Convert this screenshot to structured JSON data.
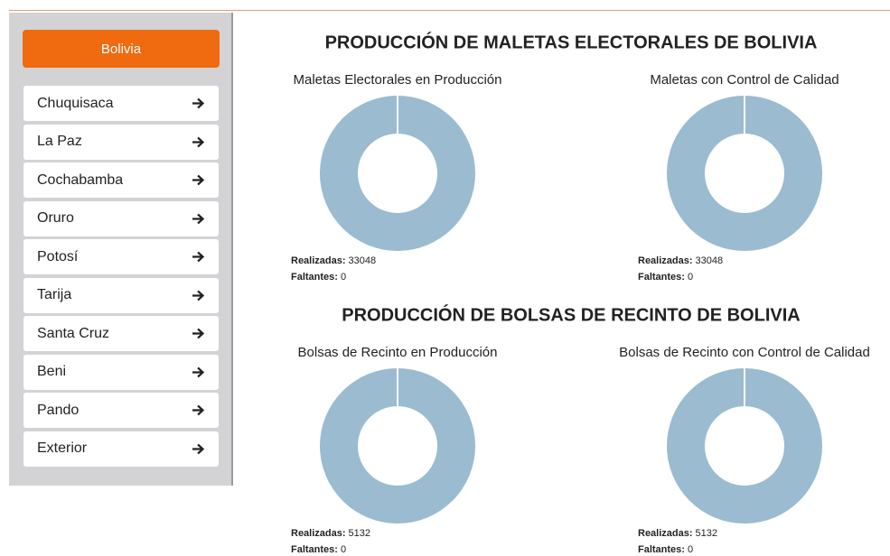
{
  "sidebar": {
    "home": "Bolivia",
    "items": [
      "Chuquisaca",
      "La Paz",
      "Cochabamba",
      "Oruro",
      "Potosí",
      "Tarija",
      "Santa Cruz",
      "Beni",
      "Pando",
      "Exterior"
    ]
  },
  "sections": [
    {
      "title": "PRODUCCIÓN DE MALETAS ELECTORALES DE BOLIVIA",
      "charts": [
        {
          "title": "Maletas Electorales en Producción",
          "type": "donut",
          "color": "#9abbd0",
          "legend": [
            {
              "label": "Realizadas:",
              "value": 33048
            },
            {
              "label": "Faltantes:",
              "value": 0
            }
          ]
        },
        {
          "title": "Maletas con Control de Calidad",
          "type": "donut",
          "color": "#9abbd0",
          "legend": [
            {
              "label": "Realizadas:",
              "value": 33048
            },
            {
              "label": "Faltantes:",
              "value": 0
            }
          ]
        }
      ]
    },
    {
      "title": "PRODUCCIÓN DE BOLSAS DE RECINTO DE BOLIVIA",
      "charts": [
        {
          "title": "Bolsas de Recinto en Producción",
          "type": "donut",
          "color": "#9abbd0",
          "legend": [
            {
              "label": "Realizadas:",
              "value": 5132
            },
            {
              "label": "Faltantes:",
              "value": 0
            }
          ]
        },
        {
          "title": "Bolsas de Recinto con Control de Calidad",
          "type": "donut",
          "color": "#9abbd0",
          "legend": [
            {
              "label": "Realizadas:",
              "value": 5132
            },
            {
              "label": "Faltantes:",
              "value": 0
            }
          ]
        }
      ]
    }
  ]
}
